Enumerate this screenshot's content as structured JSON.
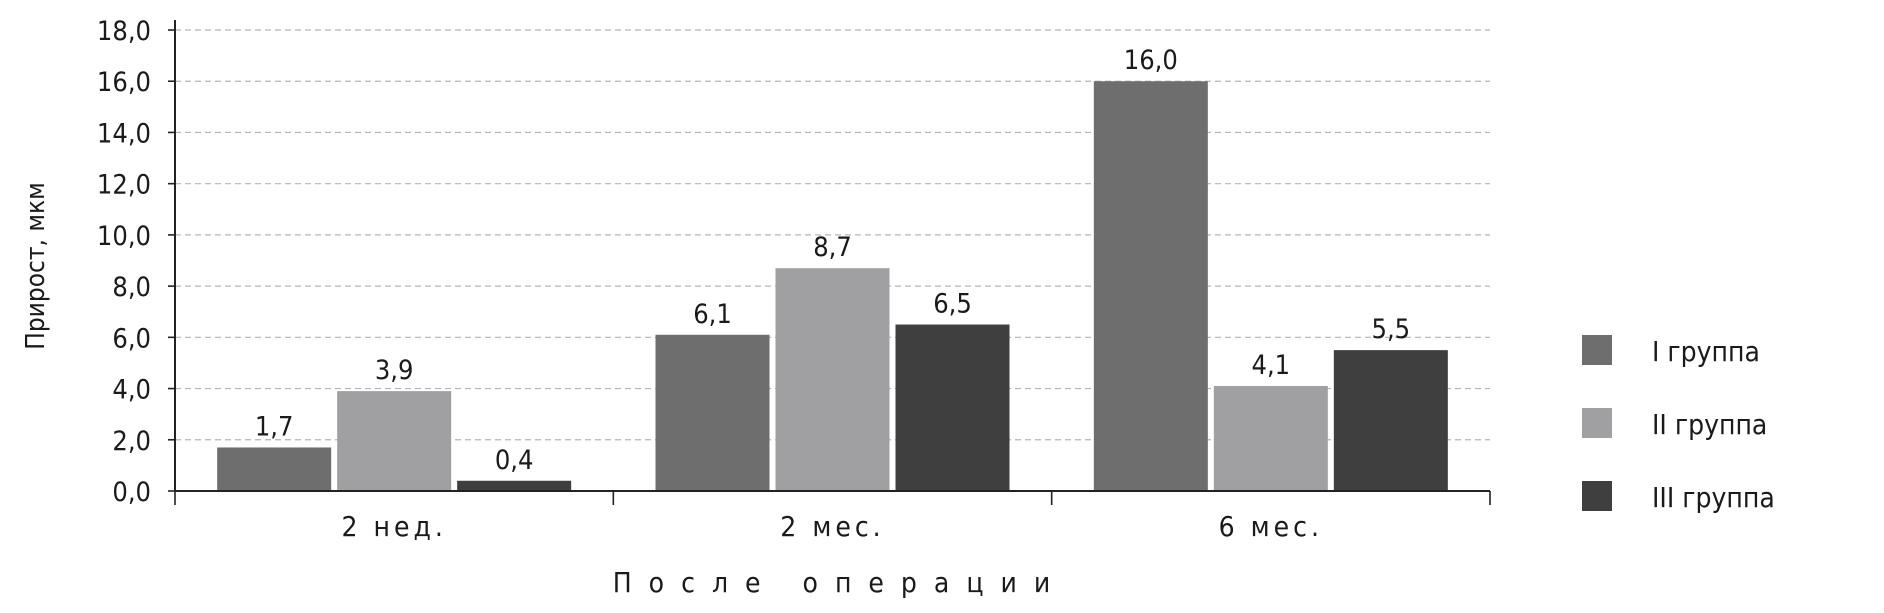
{
  "chart_data": {
    "type": "bar",
    "title": "",
    "xlabel": "После операции",
    "ylabel": "Прирост, мкм",
    "categories": [
      "2 нед.",
      "2 мес.",
      "6 мес."
    ],
    "series": [
      {
        "name": "I группа",
        "values": [
          1.7,
          6.1,
          16.0
        ],
        "value_labels": [
          "1,7",
          "6,1",
          "16,0"
        ],
        "color": "#6e6e6e"
      },
      {
        "name": "II группа",
        "values": [
          3.9,
          8.7,
          4.1
        ],
        "value_labels": [
          "3,9",
          "8,7",
          "4,1"
        ],
        "color": "#a0a0a2"
      },
      {
        "name": "III группа",
        "values": [
          0.4,
          6.5,
          5.5
        ],
        "value_labels": [
          "0,4",
          "6,5",
          "5,5"
        ],
        "color": "#3f3f3f"
      }
    ],
    "ylim": [
      0,
      18
    ],
    "yticks": [
      0,
      2,
      4,
      6,
      8,
      10,
      12,
      14,
      16,
      18
    ],
    "ytick_labels": [
      "0,0",
      "2,0",
      "4,0",
      "6,0",
      "8,0",
      "10,0",
      "12,0",
      "14,0",
      "16,0",
      "18,0"
    ],
    "grid": "horizontal dashed",
    "legend_position": "right"
  }
}
